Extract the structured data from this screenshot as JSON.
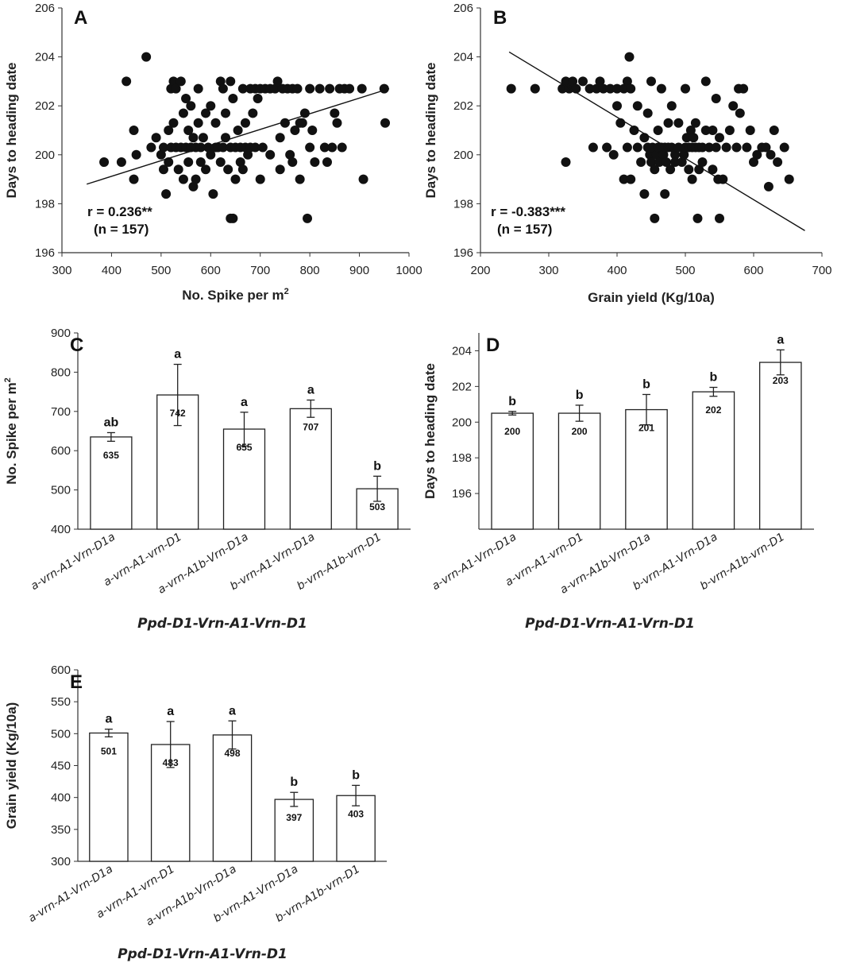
{
  "chart_data": [
    {
      "panel": "A",
      "type": "scatter",
      "xlabel": "No. Spike per m",
      "xlabel_sup": "2",
      "ylabel": "Days to heading date",
      "xlim": [
        300,
        1000
      ],
      "ylim": [
        196,
        206
      ],
      "xticks": [
        300,
        400,
        500,
        600,
        700,
        800,
        900,
        1000
      ],
      "yticks": [
        196,
        198,
        200,
        202,
        204,
        206
      ],
      "annotation": [
        "r = 0.236**",
        "(n = 157)"
      ],
      "trendline": [
        [
          350,
          198.8
        ],
        [
          960,
          202.7
        ]
      ],
      "points": [
        [
          385,
          199.7
        ],
        [
          420,
          199.7
        ],
        [
          430,
          203.0
        ],
        [
          445,
          199.0
        ],
        [
          445,
          201.0
        ],
        [
          450,
          200.0
        ],
        [
          470,
          204.0
        ],
        [
          480,
          200.3
        ],
        [
          490,
          200.7
        ],
        [
          500,
          200.0
        ],
        [
          505,
          199.4
        ],
        [
          505,
          200.3
        ],
        [
          510,
          198.4
        ],
        [
          515,
          201.0
        ],
        [
          515,
          199.7
        ],
        [
          520,
          202.7
        ],
        [
          520,
          200.3
        ],
        [
          525,
          203.0
        ],
        [
          525,
          201.3
        ],
        [
          530,
          200.3
        ],
        [
          530,
          202.7
        ],
        [
          535,
          199.4
        ],
        [
          540,
          203.0
        ],
        [
          540,
          200.3
        ],
        [
          545,
          201.7
        ],
        [
          545,
          199.0
        ],
        [
          550,
          200.3
        ],
        [
          550,
          202.3
        ],
        [
          555,
          201.0
        ],
        [
          555,
          199.7
        ],
        [
          560,
          200.3
        ],
        [
          560,
          202.0
        ],
        [
          565,
          198.7
        ],
        [
          565,
          200.7
        ],
        [
          570,
          200.3
        ],
        [
          570,
          199.0
        ],
        [
          575,
          201.3
        ],
        [
          575,
          202.7
        ],
        [
          580,
          200.3
        ],
        [
          580,
          199.7
        ],
        [
          585,
          200.7
        ],
        [
          590,
          201.7
        ],
        [
          590,
          199.4
        ],
        [
          595,
          200.3
        ],
        [
          600,
          200.0
        ],
        [
          600,
          202.0
        ],
        [
          605,
          198.4
        ],
        [
          610,
          200.3
        ],
        [
          610,
          201.3
        ],
        [
          615,
          200.3
        ],
        [
          620,
          199.7
        ],
        [
          620,
          203.0
        ],
        [
          625,
          200.3
        ],
        [
          625,
          202.7
        ],
        [
          630,
          200.7
        ],
        [
          630,
          201.7
        ],
        [
          635,
          199.4
        ],
        [
          640,
          200.3
        ],
        [
          640,
          203.0
        ],
        [
          640,
          197.4
        ],
        [
          645,
          197.4
        ],
        [
          645,
          202.3
        ],
        [
          650,
          200.3
        ],
        [
          650,
          199.0
        ],
        [
          655,
          201.0
        ],
        [
          660,
          200.3
        ],
        [
          660,
          199.7
        ],
        [
          665,
          202.7
        ],
        [
          665,
          199.4
        ],
        [
          670,
          200.3
        ],
        [
          670,
          201.3
        ],
        [
          675,
          200.0
        ],
        [
          680,
          202.7
        ],
        [
          680,
          200.3
        ],
        [
          685,
          201.7
        ],
        [
          690,
          202.7
        ],
        [
          690,
          200.3
        ],
        [
          695,
          202.3
        ],
        [
          700,
          202.7
        ],
        [
          700,
          199.0
        ],
        [
          705,
          200.3
        ],
        [
          710,
          202.7
        ],
        [
          720,
          202.7
        ],
        [
          720,
          200.0
        ],
        [
          730,
          202.7
        ],
        [
          735,
          203.0
        ],
        [
          740,
          199.4
        ],
        [
          740,
          200.7
        ],
        [
          745,
          202.7
        ],
        [
          750,
          201.3
        ],
        [
          755,
          202.7
        ],
        [
          760,
          200.0
        ],
        [
          765,
          202.7
        ],
        [
          765,
          199.7
        ],
        [
          770,
          201.0
        ],
        [
          775,
          202.7
        ],
        [
          780,
          201.3
        ],
        [
          780,
          199.0
        ],
        [
          785,
          201.3
        ],
        [
          790,
          201.7
        ],
        [
          795,
          197.4
        ],
        [
          800,
          202.7
        ],
        [
          800,
          200.3
        ],
        [
          805,
          201.0
        ],
        [
          810,
          199.7
        ],
        [
          820,
          202.7
        ],
        [
          830,
          200.3
        ],
        [
          835,
          199.7
        ],
        [
          840,
          202.7
        ],
        [
          845,
          200.3
        ],
        [
          850,
          201.7
        ],
        [
          855,
          201.3
        ],
        [
          860,
          202.7
        ],
        [
          865,
          200.3
        ],
        [
          870,
          202.7
        ],
        [
          880,
          202.7
        ],
        [
          905,
          202.7
        ],
        [
          908,
          199.0
        ],
        [
          950,
          202.7
        ],
        [
          952,
          201.3
        ]
      ]
    },
    {
      "panel": "B",
      "type": "scatter",
      "xlabel": "Grain yield (Kg/10a)",
      "ylabel": "Days to heading date",
      "xlim": [
        200,
        700
      ],
      "ylim": [
        196,
        206
      ],
      "xticks": [
        200,
        300,
        400,
        500,
        600,
        700
      ],
      "yticks": [
        196,
        198,
        200,
        202,
        204,
        206
      ],
      "annotation": [
        "r = -0.383***",
        "(n = 157)"
      ],
      "trendline": [
        [
          242,
          204.2
        ],
        [
          675,
          196.9
        ]
      ],
      "points": [
        [
          245,
          202.7
        ],
        [
          280,
          202.7
        ],
        [
          320,
          202.7
        ],
        [
          325,
          199.7
        ],
        [
          325,
          203.0
        ],
        [
          330,
          202.7
        ],
        [
          335,
          203.0
        ],
        [
          340,
          202.7
        ],
        [
          350,
          203.0
        ],
        [
          360,
          202.7
        ],
        [
          365,
          200.3
        ],
        [
          370,
          202.7
        ],
        [
          375,
          203.0
        ],
        [
          380,
          202.7
        ],
        [
          385,
          200.3
        ],
        [
          390,
          202.7
        ],
        [
          395,
          200.0
        ],
        [
          400,
          202.0
        ],
        [
          400,
          202.7
        ],
        [
          405,
          201.3
        ],
        [
          410,
          202.7
        ],
        [
          410,
          199.0
        ],
        [
          415,
          200.3
        ],
        [
          415,
          203.0
        ],
        [
          418,
          204.0
        ],
        [
          420,
          202.7
        ],
        [
          420,
          199.0
        ],
        [
          425,
          201.0
        ],
        [
          430,
          200.3
        ],
        [
          430,
          202.0
        ],
        [
          435,
          199.7
        ],
        [
          440,
          198.4
        ],
        [
          440,
          200.7
        ],
        [
          445,
          200.3
        ],
        [
          445,
          201.7
        ],
        [
          448,
          200.0
        ],
        [
          450,
          199.7
        ],
        [
          450,
          203.0
        ],
        [
          452,
          200.3
        ],
        [
          455,
          197.4
        ],
        [
          455,
          199.4
        ],
        [
          458,
          200.0
        ],
        [
          460,
          200.3
        ],
        [
          460,
          201.0
        ],
        [
          462,
          199.7
        ],
        [
          465,
          200.3
        ],
        [
          465,
          202.7
        ],
        [
          468,
          200.0
        ],
        [
          470,
          200.3
        ],
        [
          470,
          198.4
        ],
        [
          472,
          199.7
        ],
        [
          475,
          200.3
        ],
        [
          475,
          201.3
        ],
        [
          478,
          199.4
        ],
        [
          480,
          200.3
        ],
        [
          480,
          202.0
        ],
        [
          485,
          200.0
        ],
        [
          485,
          199.7
        ],
        [
          490,
          200.3
        ],
        [
          490,
          201.3
        ],
        [
          495,
          199.7
        ],
        [
          498,
          200.0
        ],
        [
          500,
          200.3
        ],
        [
          500,
          202.7
        ],
        [
          502,
          200.7
        ],
        [
          505,
          199.4
        ],
        [
          505,
          200.3
        ],
        [
          508,
          201.0
        ],
        [
          510,
          200.3
        ],
        [
          510,
          199.0
        ],
        [
          512,
          200.7
        ],
        [
          515,
          200.3
        ],
        [
          515,
          201.3
        ],
        [
          518,
          197.4
        ],
        [
          520,
          199.4
        ],
        [
          520,
          200.3
        ],
        [
          525,
          200.3
        ],
        [
          525,
          199.7
        ],
        [
          530,
          201.0
        ],
        [
          530,
          203.0
        ],
        [
          535,
          200.3
        ],
        [
          540,
          201.0
        ],
        [
          540,
          199.4
        ],
        [
          545,
          200.3
        ],
        [
          545,
          202.3
        ],
        [
          548,
          199.0
        ],
        [
          550,
          197.4
        ],
        [
          550,
          200.7
        ],
        [
          555,
          199.0
        ],
        [
          560,
          200.3
        ],
        [
          565,
          201.0
        ],
        [
          570,
          202.0
        ],
        [
          575,
          200.3
        ],
        [
          578,
          202.7
        ],
        [
          580,
          201.7
        ],
        [
          585,
          202.7
        ],
        [
          590,
          200.3
        ],
        [
          595,
          201.0
        ],
        [
          600,
          199.7
        ],
        [
          605,
          200.0
        ],
        [
          612,
          200.3
        ],
        [
          618,
          200.3
        ],
        [
          622,
          198.7
        ],
        [
          625,
          200.0
        ],
        [
          630,
          201.0
        ],
        [
          635,
          199.7
        ],
        [
          645,
          200.3
        ],
        [
          652,
          199.0
        ]
      ]
    },
    {
      "panel": "C",
      "type": "bar",
      "ylabel": "No. Spike per m",
      "ylabel_sup": "2",
      "group_label": "Ppd-D1-Vrn-A1-Vrn-D1",
      "ylim": [
        400,
        900
      ],
      "yticks": [
        400,
        500,
        600,
        700,
        800,
        900
      ],
      "categories": [
        "a-vrn-A1-Vrn-D1a",
        "a-vrn-A1-vrn-D1",
        "a-vrn-A1b-Vrn-D1a",
        "b-vrn-A1-Vrn-D1a",
        "b-vrn-A1b-vrn-D1"
      ],
      "values": [
        635,
        742,
        655,
        707,
        503
      ],
      "value_labels": [
        "635",
        "742",
        "655",
        "707",
        "503"
      ],
      "errors": [
        11,
        78,
        43,
        22,
        32
      ],
      "letters": [
        "ab",
        "a",
        "a",
        "a",
        "b"
      ]
    },
    {
      "panel": "D",
      "type": "bar",
      "ylabel": "Days to heading date",
      "group_label": "Ppd-D1-Vrn-A1-Vrn-D1",
      "ylim": [
        194,
        205
      ],
      "yticks": [
        196,
        198,
        200,
        202,
        204
      ],
      "categories": [
        "a-vrn-A1-Vrn-D1a",
        "a-vrn-A1-vrn-D1",
        "a-vrn-A1b-Vrn-D1a",
        "b-vrn-A1-Vrn-D1a",
        "b-vrn-A1b-vrn-D1"
      ],
      "values": [
        200.5,
        200.5,
        200.7,
        201.7,
        203.35
      ],
      "value_labels": [
        "200",
        "200",
        "201",
        "202",
        "203"
      ],
      "errors": [
        0.1,
        0.45,
        0.85,
        0.25,
        0.7
      ],
      "letters": [
        "b",
        "b",
        "b",
        "b",
        "a"
      ]
    },
    {
      "panel": "E",
      "type": "bar",
      "ylabel": "Grain yield (Kg/10a)",
      "group_label": "Ppd-D1-Vrn-A1-Vrn-D1",
      "ylim": [
        300,
        600
      ],
      "yticks": [
        300,
        350,
        400,
        450,
        500,
        550,
        600
      ],
      "categories": [
        "a-vrn-A1-Vrn-D1a",
        "a-vrn-A1-vrn-D1",
        "a-vrn-A1b-Vrn-D1a",
        "b-vrn-A1-Vrn-D1a",
        "b-vrn-A1b-vrn-D1"
      ],
      "values": [
        501,
        483,
        498,
        397,
        403
      ],
      "value_labels": [
        "501",
        "483",
        "498",
        "397",
        "403"
      ],
      "errors": [
        6,
        36,
        22,
        11,
        16
      ],
      "letters": [
        "a",
        "a",
        "a",
        "b",
        "b"
      ]
    }
  ]
}
